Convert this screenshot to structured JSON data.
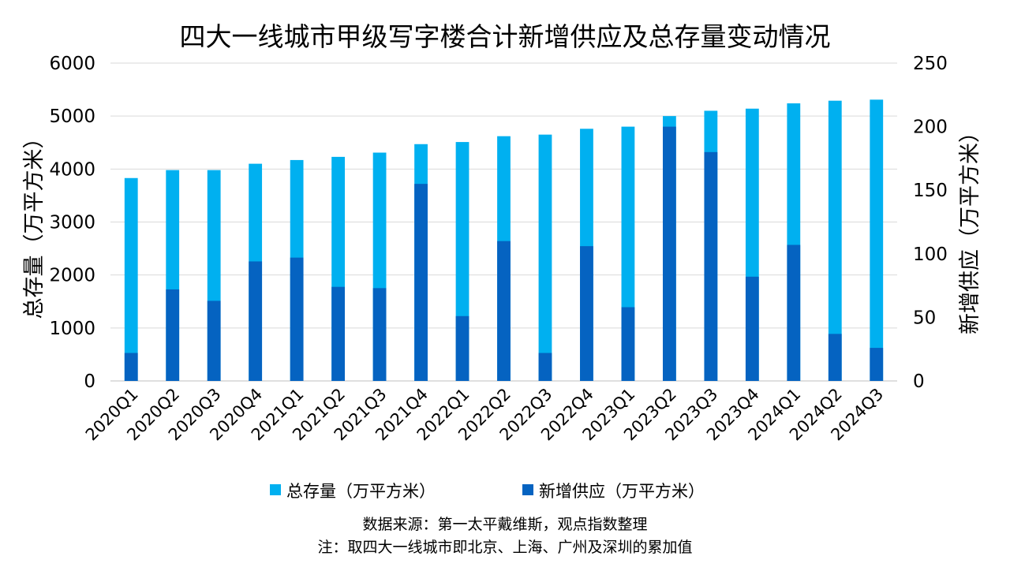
{
  "chart_data": {
    "type": "bar",
    "title": "四大一线城市甲级写字楼合计新增供应及总存量变动情况",
    "categories": [
      "2020Q1",
      "2020Q2",
      "2020Q3",
      "2020Q4",
      "2021Q1",
      "2021Q2",
      "2021Q3",
      "2021Q4",
      "2022Q1",
      "2022Q2",
      "2022Q3",
      "2022Q4",
      "2023Q1",
      "2023Q2",
      "2023Q3",
      "2023Q4",
      "2024Q1",
      "2024Q2",
      "2024Q3"
    ],
    "series": [
      {
        "name": "总存量（万平方米）",
        "axis": "left",
        "color": "#00B0F0",
        "values": [
          3830,
          3980,
          3980,
          4100,
          4170,
          4230,
          4310,
          4470,
          4510,
          4620,
          4650,
          4760,
          4800,
          5000,
          5100,
          5140,
          5240,
          5290,
          5310
        ]
      },
      {
        "name": "新增供应（万平方米）",
        "axis": "right",
        "color": "#0563C1",
        "values": [
          22,
          72,
          63,
          94,
          97,
          74,
          73,
          155,
          51,
          110,
          22,
          106,
          58,
          200,
          180,
          82,
          107,
          37,
          26
        ]
      }
    ],
    "ylabel_left": "总存量（万平方米）",
    "ylabel_right": "新增供应（万平方米）",
    "ylim_left": [
      0,
      6000
    ],
    "ylim_right": [
      0,
      250
    ],
    "yticks_left": [
      0,
      1000,
      2000,
      3000,
      4000,
      5000,
      6000
    ],
    "yticks_right": [
      0,
      50,
      100,
      150,
      200,
      250
    ],
    "grid": true,
    "legend_position": "bottom"
  },
  "notes": {
    "source": "数据来源：第一太平戴维斯，观点指数整理",
    "remark": "注：取四大一线城市即北京、上海、广州及深圳的累加值"
  }
}
